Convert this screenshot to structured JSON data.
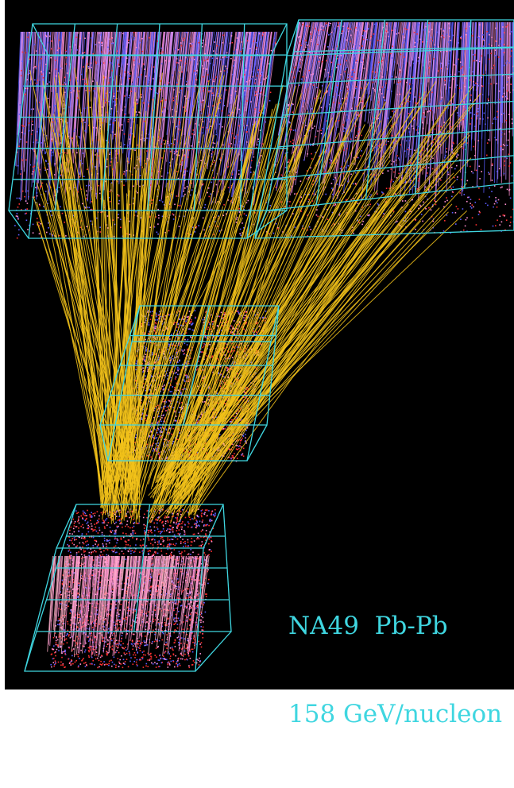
{
  "caption": {
    "line1": "NA49  Pb-Pb",
    "line2": "158 GeV/nucleon"
  },
  "colors": {
    "background": "#000000",
    "chamber_frame": "#3fd6e0",
    "track": "#f2c21a",
    "hits_blue": "#5a5cff",
    "hits_red": "#ff3030",
    "hits_pink": "#ff8fd0",
    "caption": "#3fd6e0"
  },
  "scene": {
    "subject": "event-display",
    "detectors": [
      "vertex-tpc-1",
      "vertex-tpc-2",
      "main-tpc-left",
      "main-tpc-right"
    ]
  }
}
